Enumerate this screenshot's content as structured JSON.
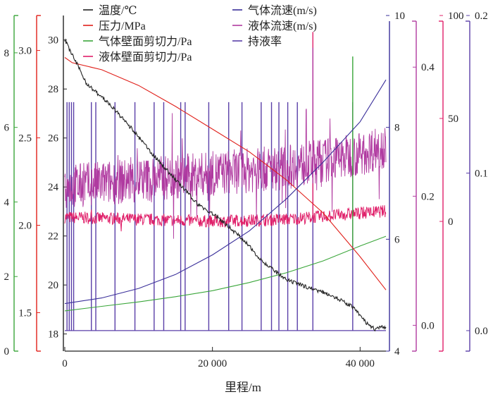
{
  "chart_data": {
    "type": "line",
    "xlabel": "里程/m",
    "xlim": [
      0,
      43500
    ],
    "xticks": [
      0,
      20000,
      40000
    ],
    "xtick_labels": [
      "0",
      "20 000",
      "40 000"
    ],
    "legend": {
      "placement": "top",
      "columns": [
        [
          "温度/℃",
          "压力/MPa",
          "气体壁面剪切力/Pa",
          "液体壁面剪切力/Pa"
        ],
        [
          "气体流速(m/s)",
          "液体流速(m/s)",
          "持液率"
        ]
      ]
    },
    "axes": [
      {
        "id": "shear_gas",
        "side": "left",
        "label": "",
        "color": "#3aa63a",
        "ylim": [
          0,
          9.0
        ],
        "ticks": [
          0,
          2,
          4,
          6,
          8
        ]
      },
      {
        "id": "pressure",
        "side": "left",
        "label": "",
        "color": "#e0201a",
        "ylim": [
          1.28,
          3.2
        ],
        "ticks": [
          1.5,
          2.0,
          2.5,
          3.0
        ],
        "tick_labels": [
          "1.5",
          "2.0",
          "2.5",
          "3.0"
        ]
      },
      {
        "id": "temperature",
        "side": "left",
        "label": "",
        "color": "#222222",
        "ylim": [
          17.3,
          31.0
        ],
        "ticks": [
          18,
          20,
          22,
          24,
          26,
          28,
          30
        ]
      },
      {
        "id": "gas_velocity",
        "side": "right",
        "label": "",
        "color": "#3a2f9a",
        "ylim": [
          4.0,
          10.0
        ],
        "ticks": [
          4,
          6,
          8,
          10
        ]
      },
      {
        "id": "liquid_velocity",
        "side": "right",
        "label": "",
        "color": "#b03aa0",
        "ylim": [
          -0.04,
          0.48
        ],
        "ticks": [
          0.0,
          0.2,
          0.4
        ],
        "tick_labels": [
          "0.0",
          "0.2",
          "0.4"
        ]
      },
      {
        "id": "shear_liquid",
        "side": "right",
        "label": "",
        "color": "#e0206a",
        "ylim": [
          -63,
          100
        ],
        "ticks": [
          0,
          50,
          100
        ]
      },
      {
        "id": "holdup",
        "side": "right",
        "label": "",
        "color": "#5a3fa8",
        "ylim": [
          -0.013,
          0.2
        ],
        "ticks": [
          0.0,
          0.1,
          0.2
        ],
        "tick_labels": [
          "0.0",
          "0.1",
          "0.2"
        ]
      }
    ],
    "series": [
      {
        "name": "温度/℃",
        "axis": "temperature",
        "color": "#222222",
        "x": [
          0,
          1000,
          3000,
          6000,
          9000,
          12000,
          15000,
          18000,
          21000,
          24000,
          27000,
          30000,
          33000,
          36000,
          39000,
          41000,
          42000,
          43500
        ],
        "y": [
          30.0,
          29.4,
          28.2,
          27.4,
          26.4,
          25.3,
          24.3,
          23.3,
          22.7,
          21.9,
          20.9,
          20.2,
          19.9,
          19.6,
          19.1,
          18.4,
          18.2,
          18.3
        ]
      },
      {
        "name": "压力/MPa",
        "axis": "pressure",
        "color": "#e0201a",
        "x": [
          0,
          1000,
          5000,
          10000,
          15000,
          20000,
          25000,
          30000,
          35000,
          40000,
          43500
        ],
        "y": [
          2.96,
          2.93,
          2.89,
          2.8,
          2.68,
          2.55,
          2.42,
          2.26,
          2.07,
          1.82,
          1.63
        ]
      },
      {
        "name": "气体壁面剪切力/Pa",
        "axis": "shear_gas",
        "color": "#3aa63a",
        "x": [
          0,
          5000,
          10000,
          15000,
          20000,
          25000,
          30000,
          35000,
          40000,
          43500
        ],
        "y": [
          1.08,
          1.2,
          1.32,
          1.46,
          1.62,
          1.84,
          2.1,
          2.42,
          2.82,
          3.08
        ]
      },
      {
        "name": "液体壁面剪切力/Pa",
        "axis": "shear_liquid",
        "color": "#e0206a",
        "x": [
          0,
          10000,
          20000,
          30000,
          40000,
          43500
        ],
        "y": [
          2,
          1,
          0,
          1,
          4,
          5
        ]
      },
      {
        "name": "气体流速(m/s)",
        "axis": "gas_velocity",
        "color": "#3a2f9a",
        "x": [
          0,
          5000,
          10000,
          15000,
          20000,
          25000,
          30000,
          35000,
          40000,
          43500
        ],
        "y": [
          4.85,
          4.95,
          5.12,
          5.37,
          5.72,
          6.15,
          6.72,
          7.38,
          8.1,
          8.85
        ]
      },
      {
        "name": "液体流速(m/s)",
        "axis": "liquid_velocity",
        "color": "#b03aa0",
        "x": [
          0,
          10000,
          20000,
          30000,
          40000,
          43500
        ],
        "y": [
          0.215,
          0.225,
          0.235,
          0.245,
          0.265,
          0.28
        ]
      },
      {
        "name": "持液率",
        "axis": "holdup",
        "color": "#5a3fa8",
        "x": [
          0,
          43500
        ],
        "y": [
          0.0,
          0.0
        ],
        "spikes_x": [
          300,
          600,
          900,
          1200,
          3600,
          4200,
          6800,
          9500,
          12100,
          13400,
          15700,
          16300,
          19500,
          22200,
          24000,
          26600,
          28000,
          29000,
          30200,
          31500,
          33600,
          39000
        ],
        "spikes_top": 0.145
      }
    ]
  }
}
